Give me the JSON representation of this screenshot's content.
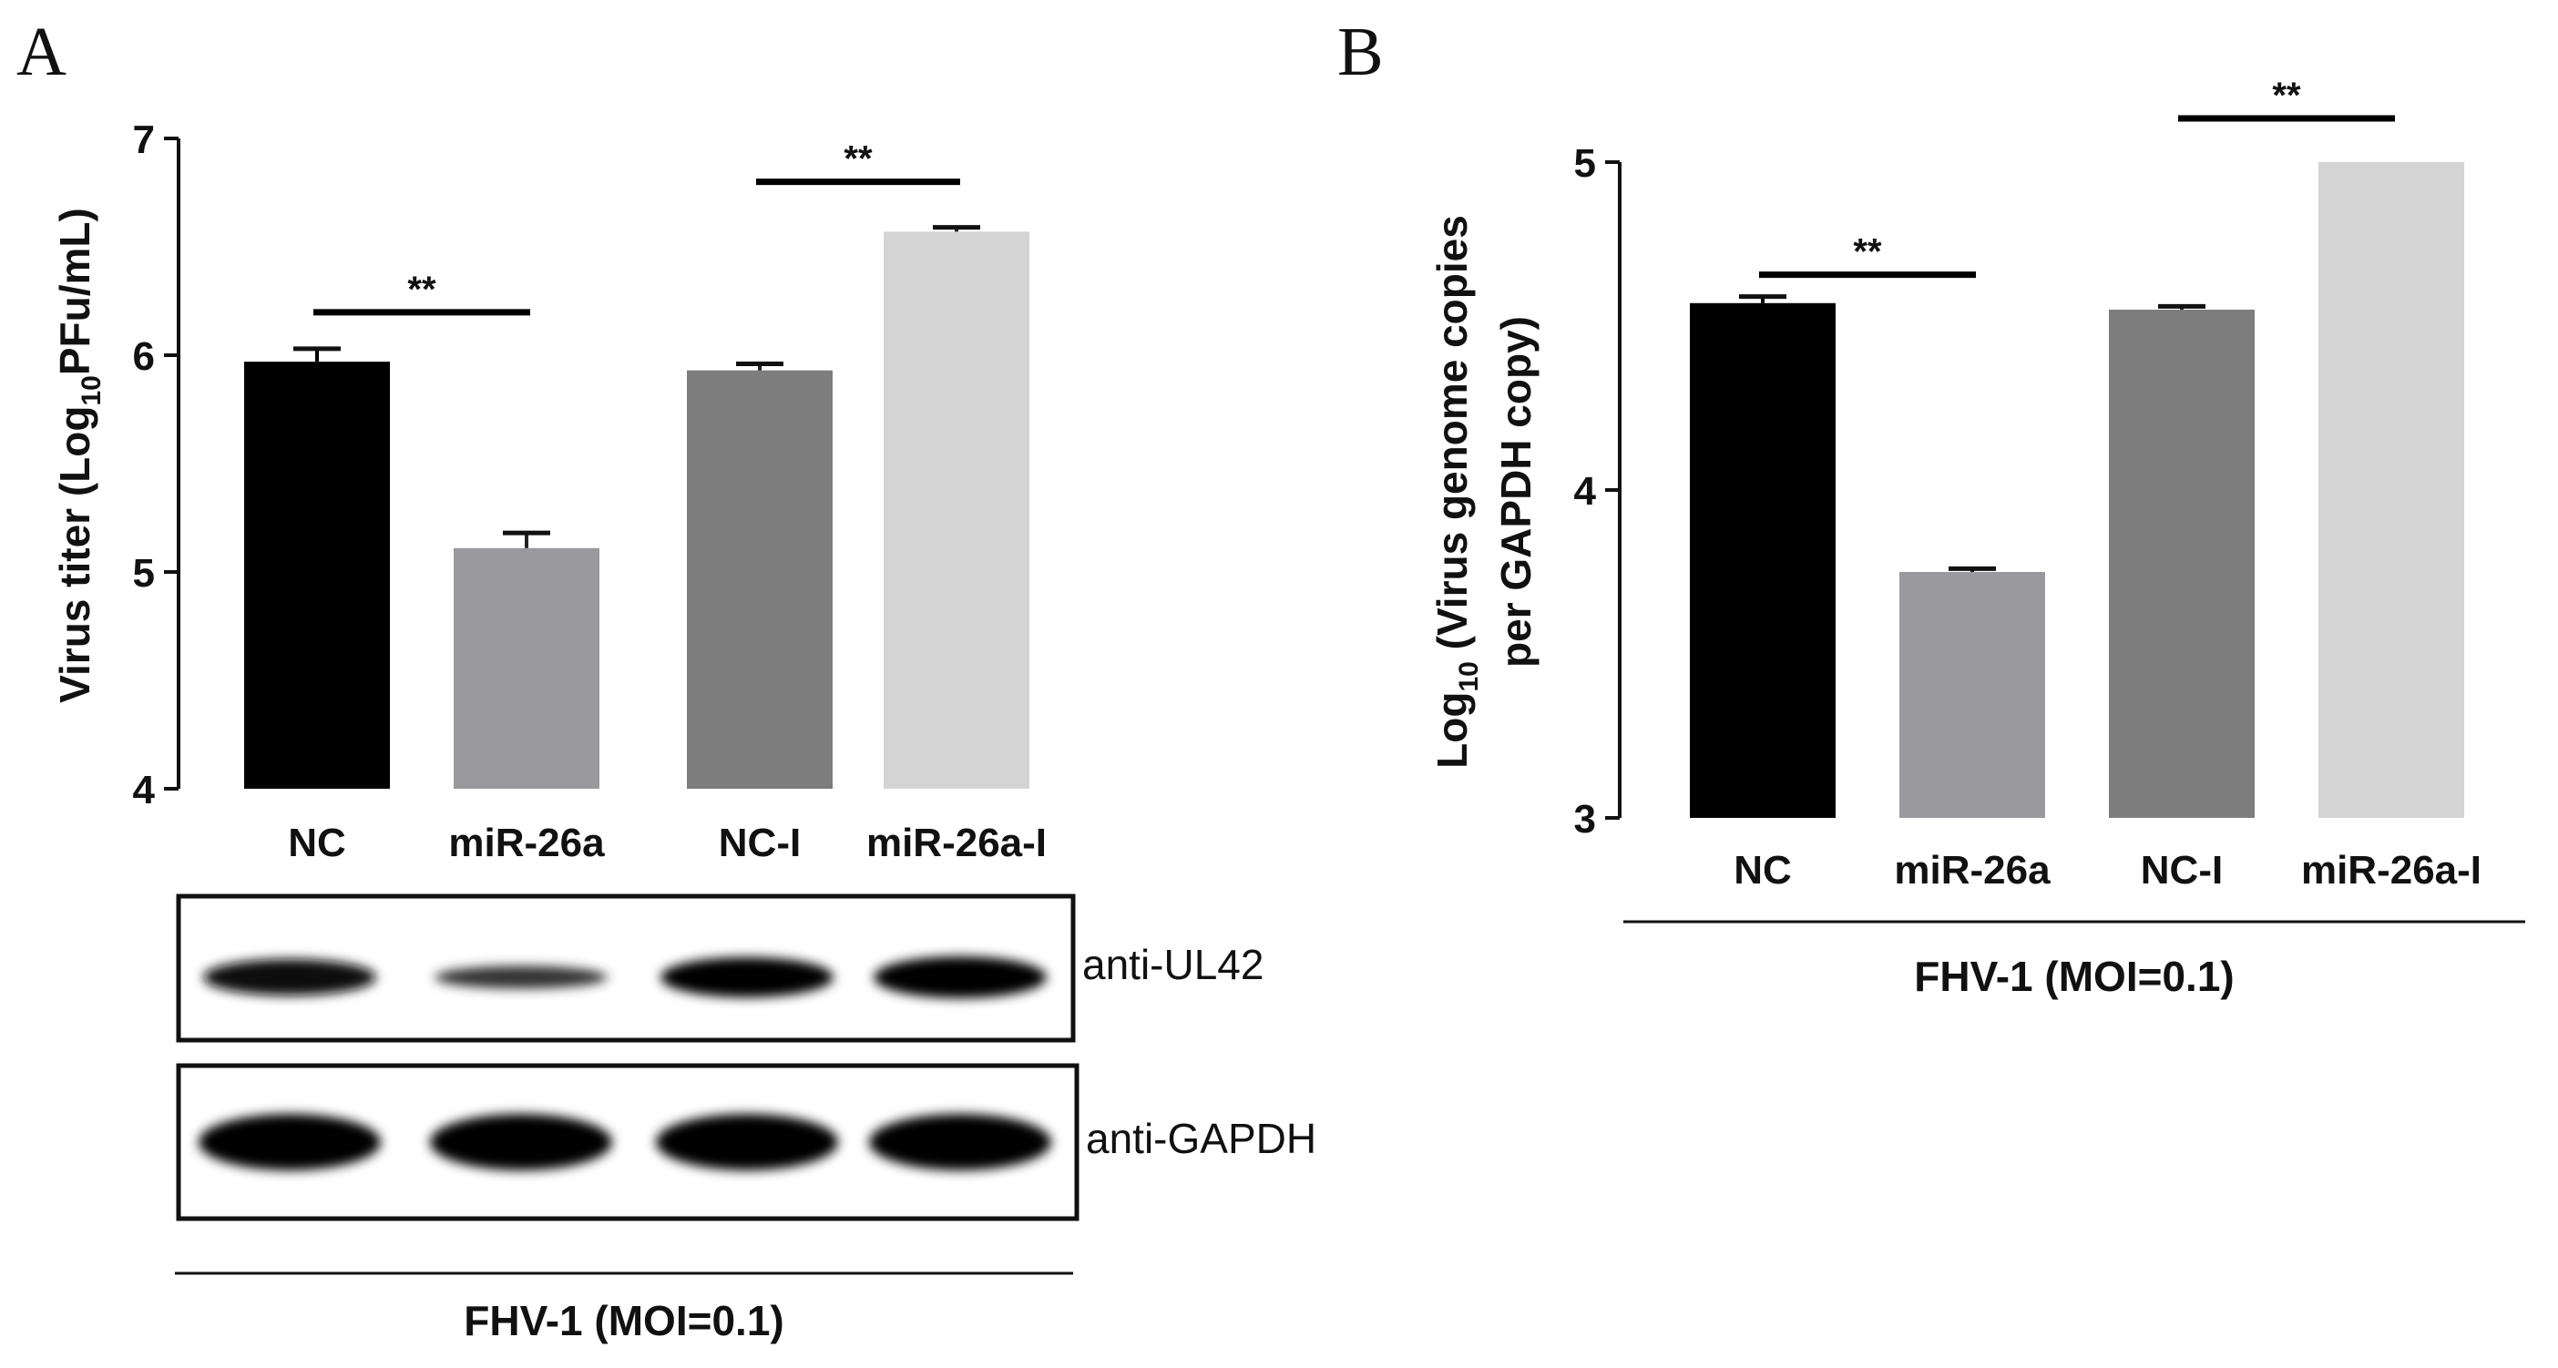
{
  "panels": [
    {
      "letter": "A"
    },
    {
      "letter": "B"
    }
  ],
  "chart_data": [
    {
      "type": "bar",
      "panel": "A",
      "categories": [
        "NC",
        "miR-26a",
        "NC-I",
        "miR-26a-I"
      ],
      "values": [
        5.97,
        5.11,
        5.93,
        6.57
      ],
      "errors": [
        0.06,
        0.07,
        0.03,
        0.02
      ],
      "colors": [
        "#000000",
        "#9a9a9e",
        "#7d7d7d",
        "#d4d4d4"
      ],
      "ylabel_main": "Virus titer (Log",
      "ylabel_sub": "10",
      "ylabel_end": "PFu/mL)",
      "ylim": [
        4,
        7
      ],
      "yticks": [
        "4",
        "5",
        "6",
        "7"
      ],
      "significance": [
        {
          "between": [
            0,
            1
          ],
          "label": "**"
        },
        {
          "between": [
            2,
            3
          ],
          "label": "**"
        }
      ]
    },
    {
      "type": "bar",
      "panel": "B",
      "categories": [
        "NC",
        "miR-26a",
        "NC-I",
        "miR-26a-I"
      ],
      "values": [
        4.57,
        3.75,
        4.55,
        5.0
      ],
      "errors": [
        0.02,
        0.01,
        0.01,
        0.0
      ],
      "colors": [
        "#000000",
        "#9a9a9e",
        "#7d7d7d",
        "#d4d4d4"
      ],
      "ylabel_line1_main": "Log",
      "ylabel_line1_sub": "10",
      "ylabel_line1_end": " (Virus genome copies",
      "ylabel_line2": "per GAPDH copy)",
      "ylim": [
        3,
        5
      ],
      "yticks": [
        "3",
        "4",
        "5"
      ],
      "significance": [
        {
          "between": [
            0,
            1
          ],
          "label": "**"
        },
        {
          "between": [
            2,
            3
          ],
          "label": "**"
        }
      ]
    }
  ],
  "blots": [
    {
      "label": "anti-UL42",
      "band_intensity": [
        0.85,
        0.45,
        0.95,
        1.0
      ]
    },
    {
      "label": "anti-GAPDH",
      "band_intensity": [
        1.0,
        1.0,
        1.0,
        1.0
      ]
    }
  ],
  "condition_label": "FHV-1 (MOI=0.1)"
}
